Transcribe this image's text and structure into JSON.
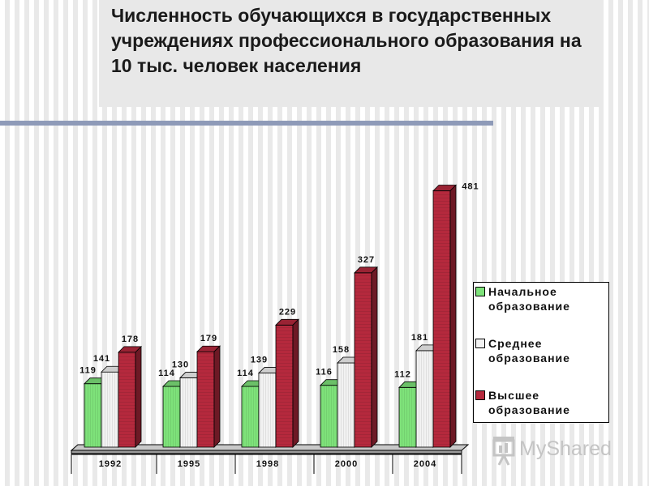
{
  "title": "Численность обучающихся в государственных учреждениях профессионального образования на 10 тыс. человек населения",
  "colors": {
    "primary": "#7ee27a",
    "secondary": "#f2f2f2",
    "higher": "#b5293d"
  },
  "legend": {
    "primary": "Начальное образование",
    "secondary": "Среднее образование",
    "higher": "Высшее образование"
  },
  "chart_data": {
    "type": "bar",
    "categories": [
      "1992",
      "1995",
      "1998",
      "2000",
      "2004"
    ],
    "series": [
      {
        "name": "Начальное образование",
        "values": [
          119,
          114,
          114,
          116,
          112
        ]
      },
      {
        "name": "Среднее образование",
        "values": [
          141,
          130,
          139,
          158,
          181
        ]
      },
      {
        "name": "Высшее образование",
        "values": [
          178,
          179,
          229,
          327,
          481
        ]
      }
    ],
    "ylim": [
      0,
      500
    ],
    "grid": false,
    "legend_position": "right"
  },
  "watermark": {
    "text": "MyShared"
  }
}
